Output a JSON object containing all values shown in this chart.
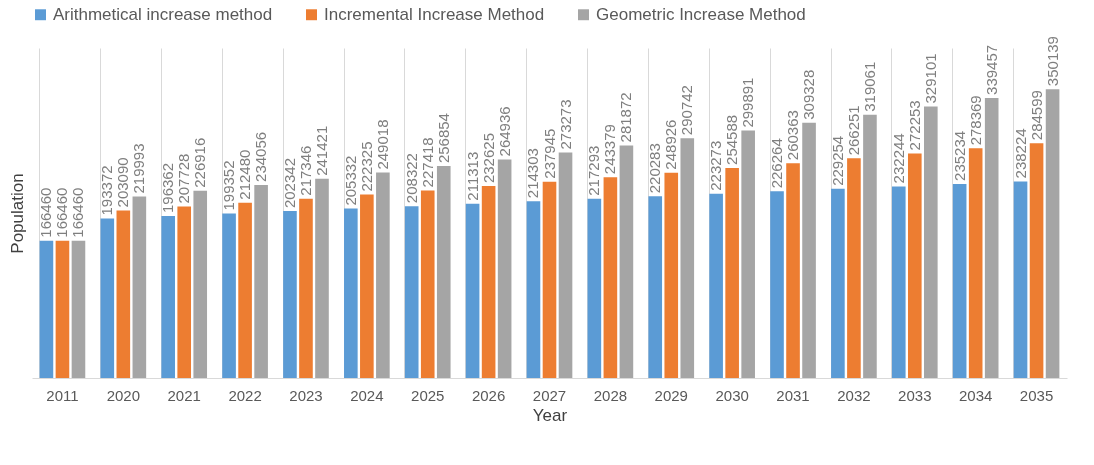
{
  "chart_data": {
    "type": "bar",
    "xlabel": "Year",
    "ylabel": "Population",
    "categories": [
      "2011",
      "2020",
      "2021",
      "2022",
      "2023",
      "2024",
      "2025",
      "2026",
      "2027",
      "2028",
      "2029",
      "2030",
      "2031",
      "2032",
      "2033",
      "2034",
      "2035"
    ],
    "series": [
      {
        "name": "Arithmetical increase method",
        "color": "#5b9bd5",
        "values": [
          166460,
          193372,
          196362,
          199352,
          202342,
          205332,
          208322,
          211313,
          214303,
          217293,
          220283,
          223273,
          226264,
          229254,
          232244,
          235234,
          238224
        ]
      },
      {
        "name": "Incremental Increase Method",
        "color": "#ed7d31",
        "values": [
          166460,
          203090,
          207728,
          212480,
          217346,
          222325,
          227418,
          232625,
          237945,
          243379,
          248926,
          254588,
          260363,
          266251,
          272253,
          278369,
          284599
        ]
      },
      {
        "name": "Geometric Increase Method",
        "color": "#a5a5a5",
        "values": [
          166460,
          219993,
          226916,
          234056,
          241421,
          249018,
          256854,
          264936,
          273273,
          281872,
          290742,
          299891,
          309328,
          319061,
          329101,
          339457,
          350139
        ]
      }
    ],
    "ylim": [
      0,
      400000
    ],
    "data_labels": true,
    "grid": "x",
    "legend": "top",
    "tick_labels": "x"
  }
}
